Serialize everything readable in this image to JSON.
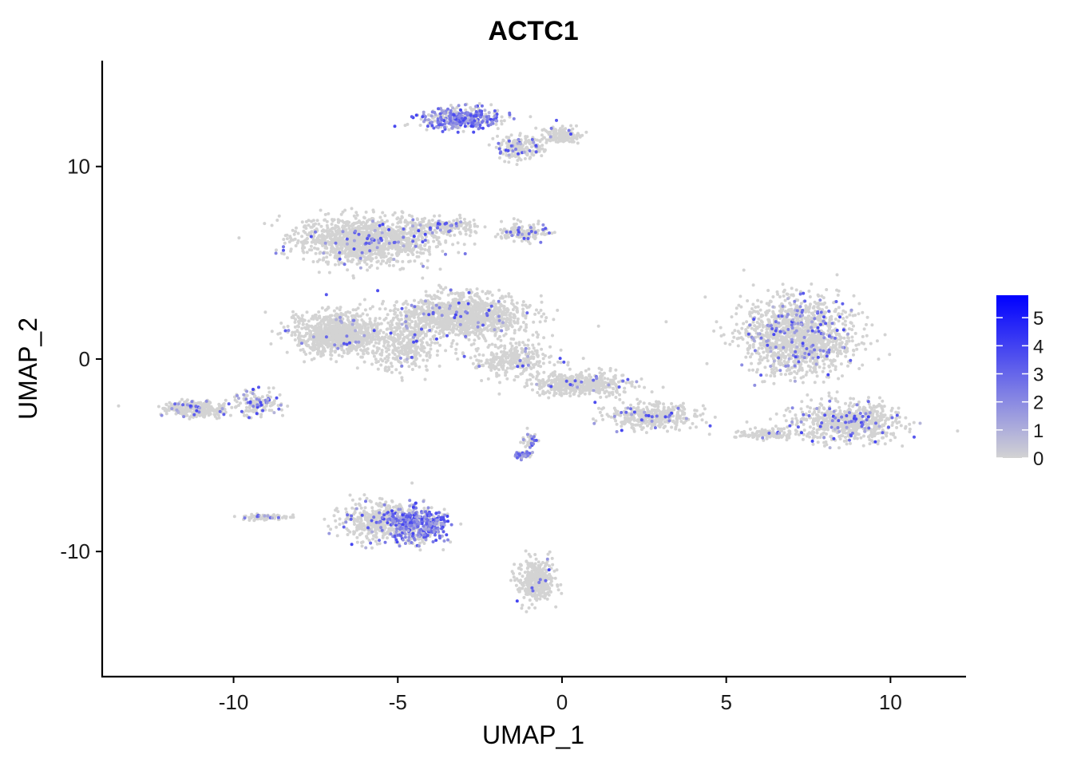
{
  "chart_data": {
    "type": "scatter",
    "title": "ACTC1",
    "xlabel": "UMAP_1",
    "ylabel": "UMAP_2",
    "xlim": [
      -14,
      12.3
    ],
    "ylim": [
      -16.5,
      15.5
    ],
    "x_ticks": [
      -10,
      -5,
      0,
      5,
      10
    ],
    "y_ticks": [
      -10,
      0,
      10
    ],
    "x_tick_labels": [
      "-10",
      "-5",
      "0",
      "5",
      "10"
    ],
    "y_tick_labels": [
      "-10",
      "0",
      "10"
    ],
    "grid": false,
    "legend": {
      "position": "right",
      "type": "colorbar",
      "min": 0,
      "max": 5.8,
      "ticks": [
        0,
        1,
        2,
        3,
        4,
        5
      ],
      "tick_labels": [
        "0",
        "1",
        "2",
        "3",
        "4",
        "5"
      ],
      "color_low": "#d3d3d3",
      "color_high": "#0000ff"
    },
    "point_color_low": "#d3d3d3",
    "point_color_high": "#0000ff",
    "clusters": [
      {
        "cx": -6.0,
        "cy": 6.2,
        "sx": 1.7,
        "sy": 1.0,
        "n": 1300,
        "expr": 0.04
      },
      {
        "cx": -6.8,
        "cy": 1.3,
        "sx": 1.1,
        "sy": 0.9,
        "n": 900,
        "expr": 0.03
      },
      {
        "cx": -3.0,
        "cy": 2.2,
        "sx": 1.6,
        "sy": 0.9,
        "n": 1100,
        "expr": 0.03
      },
      {
        "cx": -4.8,
        "cy": 0.8,
        "sx": 1.0,
        "sy": 1.2,
        "n": 350,
        "expr": 0.03
      },
      {
        "cx": -1.5,
        "cy": 0.0,
        "sx": 1.0,
        "sy": 0.7,
        "n": 300,
        "expr": 0.03
      },
      {
        "cx": 0.5,
        "cy": -1.3,
        "sx": 1.3,
        "sy": 0.5,
        "n": 450,
        "expr": 0.05
      },
      {
        "cx": 2.8,
        "cy": -3.0,
        "sx": 1.1,
        "sy": 0.5,
        "n": 400,
        "expr": 0.06
      },
      {
        "cx": 7.2,
        "cy": 1.2,
        "sx": 1.4,
        "sy": 1.6,
        "n": 1400,
        "expr": 0.09
      },
      {
        "cx": 8.7,
        "cy": -3.3,
        "sx": 1.3,
        "sy": 0.8,
        "n": 700,
        "expr": 0.1
      },
      {
        "cx": 6.3,
        "cy": -3.9,
        "sx": 0.8,
        "sy": 0.25,
        "n": 120,
        "expr": 0.05
      },
      {
        "cx": -11.2,
        "cy": -2.6,
        "sx": 0.8,
        "sy": 0.35,
        "n": 300,
        "expr": 0.08
      },
      {
        "cx": -9.3,
        "cy": -2.3,
        "sx": 0.6,
        "sy": 0.6,
        "n": 140,
        "expr": 0.18
      },
      {
        "cx": -3.1,
        "cy": 12.5,
        "sx": 1.0,
        "sy": 0.45,
        "n": 420,
        "expr": 0.55
      },
      {
        "cx": -1.3,
        "cy": 11.0,
        "sx": 0.6,
        "sy": 0.5,
        "n": 180,
        "expr": 0.12
      },
      {
        "cx": 0.0,
        "cy": 11.6,
        "sx": 0.5,
        "sy": 0.35,
        "n": 150,
        "expr": 0.05
      },
      {
        "cx": -3.5,
        "cy": 6.9,
        "sx": 0.8,
        "sy": 0.35,
        "n": 160,
        "expr": 0.1
      },
      {
        "cx": -1.2,
        "cy": 6.6,
        "sx": 0.6,
        "sy": 0.4,
        "n": 140,
        "expr": 0.15
      },
      {
        "cx": -5.6,
        "cy": -8.5,
        "sx": 0.9,
        "sy": 0.8,
        "n": 420,
        "expr": 0.08
      },
      {
        "cx": -4.4,
        "cy": -8.6,
        "sx": 0.7,
        "sy": 0.75,
        "n": 520,
        "expr": 0.62
      },
      {
        "cx": -1.2,
        "cy": -5.0,
        "sx": 0.2,
        "sy": 0.12,
        "n": 60,
        "expr": 0.55
      },
      {
        "cx": -1.0,
        "cy": -4.2,
        "sx": 0.2,
        "sy": 0.4,
        "n": 50,
        "expr": 0.15
      },
      {
        "cx": -0.8,
        "cy": -11.5,
        "sx": 0.45,
        "sy": 0.9,
        "n": 360,
        "expr": 0.02
      },
      {
        "cx": -9.0,
        "cy": -8.2,
        "sx": 0.7,
        "sy": 0.12,
        "n": 70,
        "expr": 0.1
      }
    ]
  }
}
